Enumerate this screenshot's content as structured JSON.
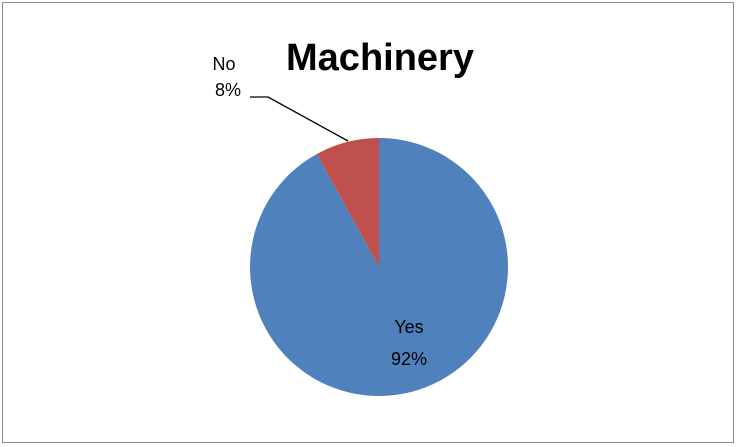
{
  "chart_data": {
    "type": "pie",
    "title": "Machinery",
    "slices": [
      {
        "label": "Yes",
        "value": 92,
        "pct_label": "92%",
        "color": "#4f81bd"
      },
      {
        "label": "No",
        "value": 8,
        "pct_label": "8%",
        "color": "#c0504d"
      }
    ],
    "legend": "none",
    "start_angle_deg": 0,
    "direction": "clockwise"
  }
}
